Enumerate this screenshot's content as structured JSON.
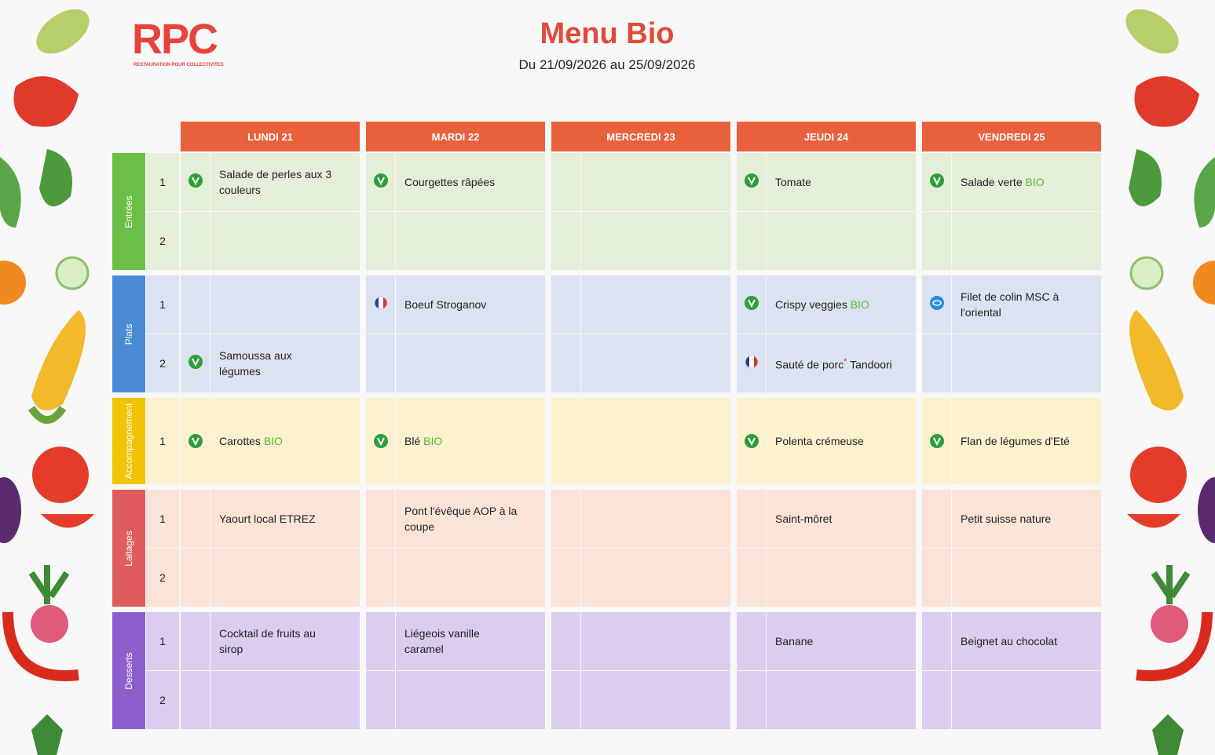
{
  "header": {
    "logo": "RPC",
    "logo_subtitle": "RESTAURATION POUR COLLECTIVITES",
    "title": "Menu Bio",
    "subtitle": "Du 21/09/2026 au 25/09/2026"
  },
  "days": [
    "LUNDI 21",
    "MARDI 22",
    "MERCREDI 23",
    "JEUDI 24",
    "VENDREDI 25"
  ],
  "sections": [
    {
      "name": "Entrées",
      "color": "#6cbf46",
      "background": "#e3efd9",
      "rows": [
        {
          "number": "1",
          "cells": [
            {
              "icon": "vegetarian",
              "text": "Salade de perles aux 3 couleurs"
            },
            {
              "icon": "vegetarian",
              "text": "Courgettes râpées"
            },
            null,
            {
              "icon": "vegetarian",
              "text": "Tomate"
            },
            {
              "icon": "vegetarian",
              "text": "Salade verte",
              "tag": "BIO"
            }
          ]
        },
        {
          "number": "2",
          "cells": [
            null,
            null,
            null,
            null,
            null
          ]
        }
      ]
    },
    {
      "name": "Plats",
      "color": "#4a8bd4",
      "background": "#dbe3f2",
      "rows": [
        {
          "number": "1",
          "cells": [
            null,
            {
              "icon": "france",
              "text": "Boeuf Stroganov"
            },
            null,
            {
              "icon": "vegetarian",
              "text": "Crispy veggies",
              "tag": "BIO"
            },
            {
              "icon": "msc",
              "text": "Filet de colin MSC à l'oriental"
            }
          ]
        },
        {
          "number": "2",
          "cells": [
            {
              "icon": "vegetarian",
              "text": "Samoussa aux légumes"
            },
            null,
            null,
            {
              "icon": "france",
              "text": "Sauté de porc",
              "note": "*",
              "text_after": "Tandoori"
            },
            null
          ]
        }
      ]
    },
    {
      "name": "Accompagnement",
      "color": "#f2c300",
      "background": "#fdf1cf",
      "rows": [
        {
          "number": "1",
          "cells": [
            {
              "icon": "vegetarian",
              "text": "Carottes",
              "tag": "BIO"
            },
            {
              "icon": "vegetarian",
              "text": "Blé",
              "tag": "BIO"
            },
            null,
            {
              "icon": "vegetarian",
              "text": "Polenta crémeuse"
            },
            {
              "icon": "vegetarian",
              "text": "Flan de légumes d'Eté"
            }
          ]
        }
      ]
    },
    {
      "name": "Laitages",
      "color": "#e05c5c",
      "background": "#fbe3d7",
      "rows": [
        {
          "number": "1",
          "cells": [
            {
              "text": "Yaourt local ETREZ"
            },
            {
              "text": "Pont l'évêque AOP à la coupe"
            },
            null,
            {
              "text": "Saint-môret"
            },
            {
              "text": "Petit suisse nature"
            }
          ]
        },
        {
          "number": "2",
          "cells": [
            null,
            null,
            null,
            null,
            null
          ]
        }
      ]
    },
    {
      "name": "Desserts",
      "color": "#8d5fcd",
      "background": "#dccdef",
      "rows": [
        {
          "number": "1",
          "cells": [
            {
              "text": "Cocktail de fruits au sirop"
            },
            {
              "text": "Liégeois vanille caramel"
            },
            null,
            {
              "text": "Banane"
            },
            {
              "text": "Beignet au chocolat"
            }
          ]
        },
        {
          "number": "2",
          "cells": [
            null,
            null,
            null,
            null,
            null
          ]
        }
      ]
    }
  ],
  "header_color": "#e8603c",
  "tag_color": "#5cb832",
  "note_color": "#e03030"
}
